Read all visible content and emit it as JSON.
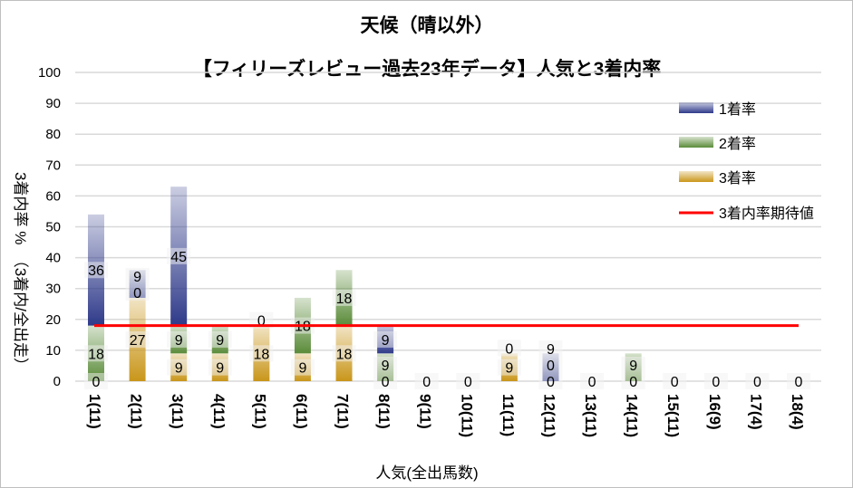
{
  "chart_data": {
    "type": "bar",
    "stacked": true,
    "title": "天候（晴以外）",
    "subtitle": "【フィリーズレビュー過去23年データ】人気と3着内率",
    "xlabel": "人気(全出馬数)",
    "ylabel": "3着内率 %　（3着内/全出走）",
    "ylim": [
      0,
      100
    ],
    "yticks": [
      0,
      10,
      20,
      30,
      40,
      50,
      60,
      70,
      80,
      90,
      100
    ],
    "grid": true,
    "legend_position": "right",
    "categories": [
      "1(11)",
      "2(11)",
      "3(11)",
      "4(11)",
      "5(11)",
      "6(11)",
      "7(11)",
      "8(11)",
      "9(11)",
      "10(11)",
      "11(11)",
      "12(11)",
      "13(11)",
      "14(11)",
      "15(11)",
      "16(9)",
      "17(4)",
      "18(4)"
    ],
    "series": [
      {
        "name": "3着率",
        "color": "#c9961a",
        "values": [
          0,
          27,
          9,
          9,
          18,
          9,
          18,
          0,
          0,
          0,
          9,
          0,
          0,
          0,
          0,
          0,
          0,
          0
        ]
      },
      {
        "name": "2着率",
        "color": "#5b8c3a",
        "values": [
          18,
          0,
          9,
          9,
          0,
          18,
          18,
          9,
          0,
          0,
          0,
          0,
          0,
          9,
          0,
          0,
          0,
          0
        ]
      },
      {
        "name": "1着率",
        "color": "#2f3a8a",
        "values": [
          36,
          9,
          45,
          0,
          0,
          0,
          0,
          9,
          0,
          0,
          0,
          9,
          0,
          0,
          0,
          0,
          0,
          0
        ]
      }
    ],
    "reference_line": {
      "name": "3着内率期待値",
      "color": "#ff0000",
      "value": 18
    }
  }
}
